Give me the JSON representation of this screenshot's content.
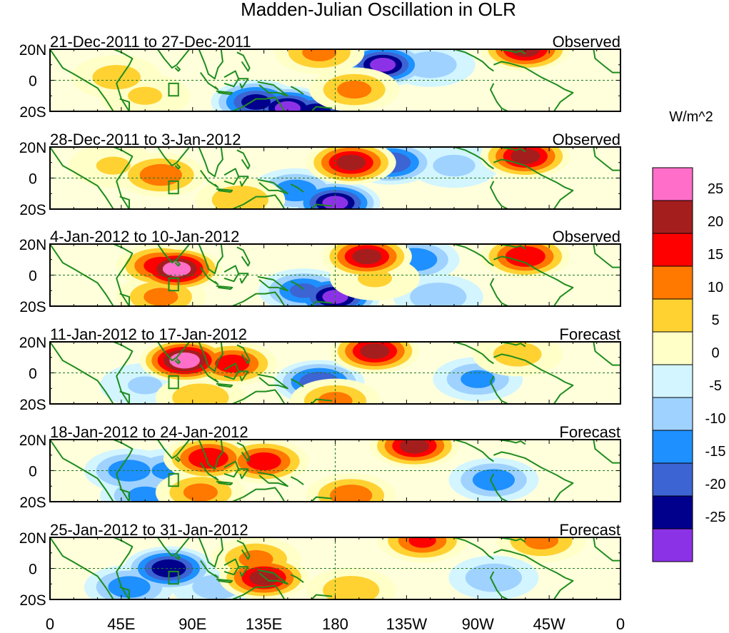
{
  "title": "Madden-Julian Oscillation in OLR",
  "panels": [
    {
      "date_range": "21-Dec-2011 to 27-Dec-2011",
      "status": "Observed",
      "anomalies": [
        {
          "lon": 210,
          "lat": 10,
          "value": -26
        },
        {
          "lon": 208,
          "lat": 11,
          "value": -18
        },
        {
          "lon": 130,
          "lat": -14,
          "value": -22
        },
        {
          "lon": 150,
          "lat": -18,
          "value": -26
        },
        {
          "lon": 168,
          "lat": -20,
          "value": -22
        },
        {
          "lon": 170,
          "lat": 18,
          "value": 12
        },
        {
          "lon": 192,
          "lat": -6,
          "value": 12
        },
        {
          "lon": 300,
          "lat": 20,
          "value": 22
        },
        {
          "lon": 42,
          "lat": 2,
          "value": 8
        },
        {
          "lon": 240,
          "lat": 10,
          "value": -9
        },
        {
          "lon": 60,
          "lat": -10,
          "value": 6
        }
      ]
    },
    {
      "date_range": "28-Dec-2011 to 3-Jan-2012",
      "status": "Observed",
      "anomalies": [
        {
          "lon": 190,
          "lat": 10,
          "value": 22
        },
        {
          "lon": 70,
          "lat": 2,
          "value": 14
        },
        {
          "lon": 40,
          "lat": 8,
          "value": 6
        },
        {
          "lon": 180,
          "lat": -16,
          "value": -26
        },
        {
          "lon": 155,
          "lat": -8,
          "value": -14
        },
        {
          "lon": 215,
          "lat": 10,
          "value": -20
        },
        {
          "lon": 300,
          "lat": 14,
          "value": 22
        },
        {
          "lon": 120,
          "lat": -14,
          "value": 10
        },
        {
          "lon": 255,
          "lat": 8,
          "value": -7
        }
      ]
    },
    {
      "date_range": "4-Jan-2012 to 10-Jan-2012",
      "status": "Observed",
      "anomalies": [
        {
          "lon": 80,
          "lat": 4,
          "value": 27
        },
        {
          "lon": 70,
          "lat": 6,
          "value": 18
        },
        {
          "lon": 160,
          "lat": -10,
          "value": -16
        },
        {
          "lon": 180,
          "lat": -14,
          "value": -26
        },
        {
          "lon": 200,
          "lat": 12,
          "value": 22
        },
        {
          "lon": 230,
          "lat": 10,
          "value": -15
        },
        {
          "lon": 300,
          "lat": 12,
          "value": 20
        },
        {
          "lon": 70,
          "lat": -14,
          "value": 12
        },
        {
          "lon": 245,
          "lat": -14,
          "value": -10
        },
        {
          "lon": 205,
          "lat": -2,
          "value": 6
        }
      ]
    },
    {
      "date_range": "11-Jan-2012 to 17-Jan-2012",
      "status": "Forecast",
      "anomalies": [
        {
          "lon": 85,
          "lat": 8,
          "value": 28
        },
        {
          "lon": 115,
          "lat": 6,
          "value": 18
        },
        {
          "lon": 170,
          "lat": -6,
          "value": -20
        },
        {
          "lon": 205,
          "lat": 14,
          "value": 22
        },
        {
          "lon": 180,
          "lat": -18,
          "value": 12
        },
        {
          "lon": 270,
          "lat": -4,
          "value": -12
        },
        {
          "lon": 295,
          "lat": 12,
          "value": 8
        },
        {
          "lon": 60,
          "lat": -8,
          "value": -6
        },
        {
          "lon": 95,
          "lat": -16,
          "value": 10
        }
      ]
    },
    {
      "date_range": "18-Jan-2012 to 24-Jan-2012",
      "status": "Forecast",
      "anomalies": [
        {
          "lon": 100,
          "lat": 8,
          "value": 20
        },
        {
          "lon": 135,
          "lat": 6,
          "value": 18
        },
        {
          "lon": 50,
          "lat": 0,
          "value": -14
        },
        {
          "lon": 75,
          "lat": 0,
          "value": -12
        },
        {
          "lon": 230,
          "lat": 16,
          "value": 22
        },
        {
          "lon": 190,
          "lat": -16,
          "value": 14
        },
        {
          "lon": 280,
          "lat": -6,
          "value": -14
        },
        {
          "lon": 95,
          "lat": -14,
          "value": 12
        },
        {
          "lon": 60,
          "lat": -16,
          "value": -12
        }
      ]
    },
    {
      "date_range": "25-Jan-2012 to 31-Jan-2012",
      "status": "Forecast",
      "anomalies": [
        {
          "lon": 75,
          "lat": 0,
          "value": -24
        },
        {
          "lon": 135,
          "lat": -6,
          "value": 22
        },
        {
          "lon": 130,
          "lat": 6,
          "value": 12
        },
        {
          "lon": 235,
          "lat": 18,
          "value": 16
        },
        {
          "lon": 310,
          "lat": 18,
          "value": 12
        },
        {
          "lon": 50,
          "lat": -12,
          "value": -14
        },
        {
          "lon": 280,
          "lat": -6,
          "value": -10
        },
        {
          "lon": 190,
          "lat": -14,
          "value": 10
        },
        {
          "lon": 105,
          "lat": -12,
          "value": -8
        }
      ]
    }
  ],
  "lat_labels": [
    "20N",
    "0",
    "20S"
  ],
  "lon_labels": [
    "0",
    "45E",
    "90E",
    "135E",
    "180",
    "135W",
    "90W",
    "45W",
    "0"
  ],
  "colorbar": {
    "unit_label": "W/m^2",
    "tick_labels": [
      "25",
      "20",
      "15",
      "10",
      "5",
      "0",
      "-5",
      "-10",
      "-15",
      "-20",
      "-25"
    ],
    "colors": [
      "#ff6ec8",
      "#a51e1e",
      "#ff0000",
      "#ff7800",
      "#ffd232",
      "#ffffc8",
      "#d2f5ff",
      "#a0d2ff",
      "#1e90ff",
      "#3c64d2",
      "#00008c",
      "#8c32e6"
    ],
    "thresholds": [
      25,
      20,
      15,
      10,
      5,
      0,
      -5,
      -10,
      -15,
      -20,
      -25
    ]
  },
  "land_color": "#1e8c1e",
  "equator_color": "#1e7a1e",
  "index_box": {
    "lon0": 75,
    "lon1": 81,
    "lat0": -10,
    "lat1": -2
  }
}
